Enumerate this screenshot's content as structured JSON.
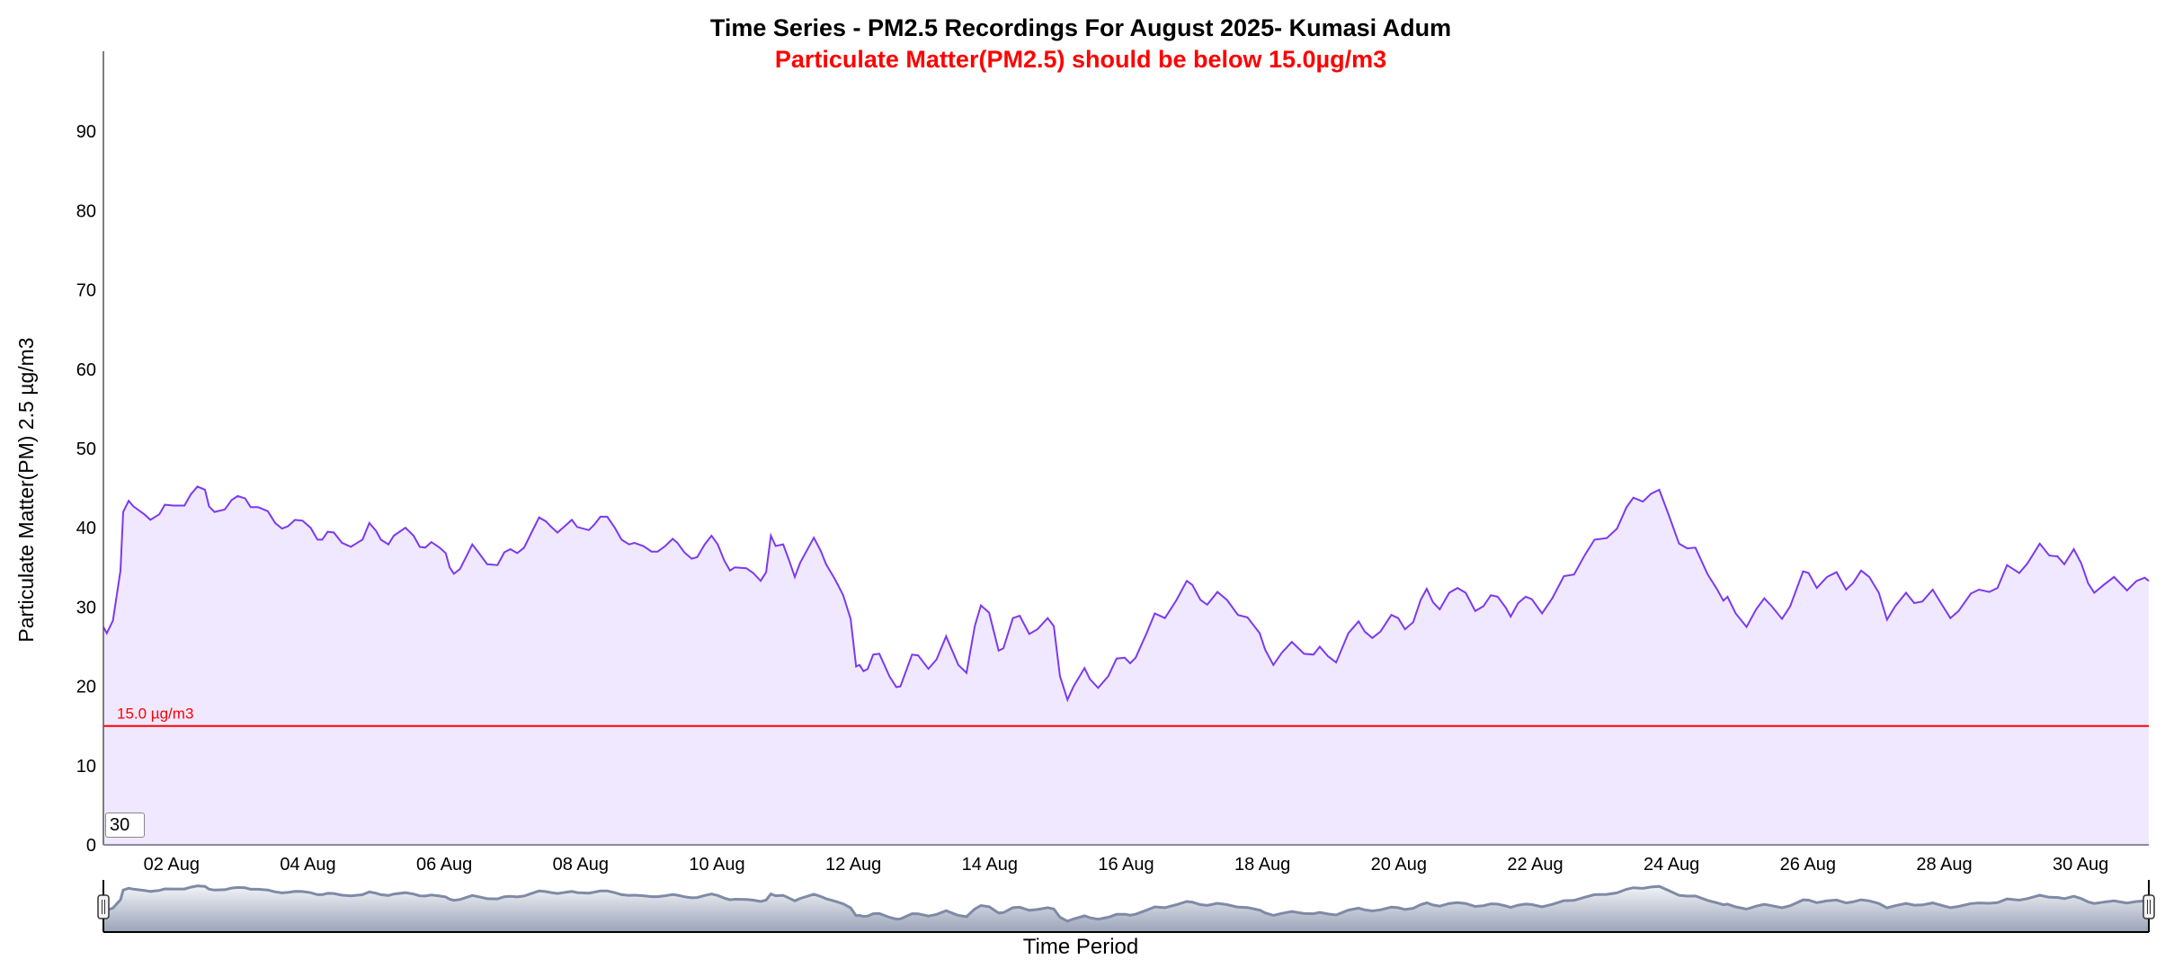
{
  "chart_data": {
    "type": "area",
    "title": "Time Series - PM2.5 Recordings For August 2025- Kumasi Adum",
    "subtitle": "Particulate Matter(PM2.5) should be below 15.0µg/m3",
    "xlabel": "Time Period",
    "ylabel": "Particulate Matter(PM) 2.5 µg/m3",
    "ylim": [
      0,
      100
    ],
    "xlim_day_of_august": [
      1,
      31
    ],
    "y_ticks": [
      0,
      10,
      20,
      30,
      40,
      50,
      60,
      70,
      80,
      90
    ],
    "x_ticks": [
      {
        "day": 2,
        "label": "02 Aug"
      },
      {
        "day": 4,
        "label": "04 Aug"
      },
      {
        "day": 6,
        "label": "06 Aug"
      },
      {
        "day": 8,
        "label": "08 Aug"
      },
      {
        "day": 10,
        "label": "10 Aug"
      },
      {
        "day": 12,
        "label": "12 Aug"
      },
      {
        "day": 14,
        "label": "14 Aug"
      },
      {
        "day": 16,
        "label": "16 Aug"
      },
      {
        "day": 18,
        "label": "18 Aug"
      },
      {
        "day": 20,
        "label": "20 Aug"
      },
      {
        "day": 22,
        "label": "22 Aug"
      },
      {
        "day": 24,
        "label": "24 Aug"
      },
      {
        "day": 26,
        "label": "26 Aug"
      },
      {
        "day": 28,
        "label": "28 Aug"
      },
      {
        "day": 30,
        "label": "30 Aug"
      }
    ],
    "threshold": {
      "value": 15.0,
      "label": "15.0 µg/m3",
      "color": "#ff0000"
    },
    "grid": false,
    "line_color": "#7c3aed",
    "fill_color": "#f0e8ff",
    "series": [
      {
        "x": [
          1.0,
          1.05,
          1.14,
          1.25,
          1.29,
          1.37,
          1.44,
          1.6,
          1.69,
          1.82,
          1.9,
          2.03,
          2.19,
          2.28,
          2.38,
          2.49,
          2.55,
          2.63,
          2.78,
          2.88,
          2.97,
          3.08,
          3.16,
          3.27,
          3.41,
          3.52,
          3.62,
          3.71,
          3.81,
          3.92,
          4.04,
          4.14,
          4.21,
          4.29,
          4.38,
          4.5,
          4.63,
          4.76,
          4.8,
          4.9,
          5.0,
          5.07,
          5.18,
          5.26,
          5.43,
          5.55,
          5.64,
          5.72,
          5.81,
          5.93,
          6.02,
          6.08,
          6.14,
          6.23,
          6.33,
          6.41,
          6.5,
          6.63,
          6.78,
          6.88,
          6.97,
          7.07,
          7.17,
          7.28,
          7.39,
          7.49,
          7.57,
          7.66,
          7.74,
          7.87,
          7.95,
          8.12,
          8.2,
          8.29,
          8.39,
          8.5,
          8.6,
          8.71,
          8.79,
          8.92,
          9.04,
          9.13,
          9.24,
          9.35,
          9.42,
          9.52,
          9.63,
          9.71,
          9.82,
          9.92,
          10.01,
          10.11,
          10.19,
          10.26,
          10.43,
          10.53,
          10.64,
          10.72,
          10.79,
          10.86,
          10.97,
          11.06,
          11.14,
          11.22,
          11.42,
          11.52,
          11.6,
          11.73,
          11.85,
          11.96,
          12.04,
          12.09,
          12.15,
          12.21,
          12.29,
          12.38,
          12.53,
          12.63,
          12.69,
          12.86,
          12.95,
          13.1,
          13.22,
          13.36,
          13.54,
          13.66,
          13.78,
          13.87,
          13.99,
          14.13,
          14.2,
          14.34,
          14.44,
          14.58,
          14.7,
          14.85,
          14.94,
          15.03,
          15.14,
          15.23,
          15.39,
          15.47,
          15.59,
          15.74,
          15.86,
          15.98,
          16.06,
          16.14,
          16.3,
          16.42,
          16.57,
          16.74,
          16.89,
          16.97,
          17.09,
          17.19,
          17.34,
          17.48,
          17.64,
          17.78,
          17.96,
          18.04,
          18.16,
          18.28,
          18.43,
          18.61,
          18.75,
          18.84,
          18.96,
          19.08,
          19.26,
          19.41,
          19.5,
          19.61,
          19.73,
          19.89,
          19.99,
          20.09,
          20.21,
          20.32,
          20.41,
          20.5,
          20.6,
          20.74,
          20.86,
          20.98,
          21.12,
          21.24,
          21.35,
          21.45,
          21.57,
          21.64,
          21.75,
          21.86,
          21.95,
          22.1,
          22.25,
          22.42,
          22.57,
          22.73,
          22.87,
          23.05,
          23.2,
          23.34,
          23.44,
          23.58,
          23.7,
          23.82,
          23.96,
          24.11,
          24.23,
          24.35,
          24.53,
          24.67,
          24.76,
          24.82,
          24.94,
          25.1,
          25.24,
          25.36,
          25.47,
          25.62,
          25.74,
          25.93,
          26.01,
          26.13,
          26.28,
          26.42,
          26.56,
          26.66,
          26.78,
          26.9,
          27.04,
          27.16,
          27.28,
          27.44,
          27.56,
          27.68,
          27.83,
          27.98,
          28.09,
          28.21,
          28.39,
          28.51,
          28.66,
          28.78,
          28.92,
          29.1,
          29.22,
          29.4,
          29.54,
          29.66,
          29.76,
          29.9,
          30.01,
          30.11,
          30.2,
          30.34,
          30.49,
          30.68,
          30.82,
          30.94,
          31.0
        ],
        "y": [
          27.5,
          26.7,
          28.3,
          34.6,
          42.0,
          43.4,
          42.7,
          41.7,
          41.0,
          41.7,
          42.9,
          42.8,
          42.8,
          44.2,
          45.2,
          44.8,
          42.7,
          42.0,
          42.3,
          43.5,
          44.0,
          43.7,
          42.6,
          42.6,
          42.1,
          40.6,
          39.9,
          40.2,
          41.0,
          40.9,
          40.0,
          38.5,
          38.5,
          39.5,
          39.4,
          38.1,
          37.6,
          38.3,
          38.5,
          40.6,
          39.6,
          38.5,
          37.9,
          39.0,
          40.0,
          39.0,
          37.6,
          37.5,
          38.2,
          37.5,
          36.8,
          35.0,
          34.2,
          34.8,
          36.5,
          37.9,
          36.9,
          35.4,
          35.3,
          36.9,
          37.3,
          36.8,
          37.5,
          39.4,
          41.3,
          40.8,
          40.1,
          39.4,
          40.0,
          41.0,
          40.1,
          39.7,
          40.4,
          41.4,
          41.4,
          40.0,
          38.5,
          37.9,
          38.1,
          37.7,
          37.0,
          37.0,
          37.7,
          38.6,
          38.1,
          36.9,
          36.1,
          36.3,
          37.9,
          39.0,
          37.9,
          35.8,
          34.6,
          35.0,
          34.9,
          34.3,
          33.3,
          34.4,
          39.0,
          37.7,
          37.9,
          35.8,
          33.8,
          35.6,
          38.75,
          37.1,
          35.4,
          33.5,
          31.5,
          28.5,
          22.5,
          22.7,
          21.9,
          22.2,
          24.0,
          24.1,
          21.25,
          19.9,
          20.0,
          24.0,
          23.9,
          22.2,
          23.4,
          26.3,
          22.7,
          21.7,
          27.6,
          30.2,
          29.3,
          24.5,
          24.8,
          28.6,
          28.9,
          26.6,
          27.2,
          28.6,
          27.6,
          21.3,
          18.3,
          20.0,
          22.3,
          20.9,
          19.8,
          21.3,
          23.5,
          23.6,
          22.9,
          23.6,
          26.7,
          29.2,
          28.6,
          30.9,
          33.3,
          32.8,
          30.9,
          30.3,
          31.9,
          30.9,
          29.0,
          28.7,
          26.7,
          24.6,
          22.7,
          24.2,
          25.6,
          24.1,
          24.0,
          25.0,
          23.8,
          23.0,
          26.7,
          28.2,
          26.9,
          26.1,
          26.9,
          29.0,
          28.6,
          27.2,
          28.1,
          30.9,
          32.3,
          30.6,
          29.7,
          31.8,
          32.4,
          31.8,
          29.5,
          30.1,
          31.5,
          31.3,
          29.9,
          28.8,
          30.5,
          31.3,
          31.0,
          29.2,
          31.1,
          33.9,
          34.1,
          36.6,
          38.5,
          38.7,
          39.9,
          42.6,
          43.8,
          43.3,
          44.3,
          44.8,
          41.6,
          38.0,
          37.4,
          37.5,
          34.1,
          32.2,
          30.8,
          31.3,
          29.2,
          27.5,
          29.7,
          31.1,
          30.1,
          28.5,
          30.1,
          34.5,
          34.3,
          32.4,
          33.8,
          34.4,
          32.2,
          33.0,
          34.6,
          33.8,
          31.8,
          28.4,
          30.1,
          31.8,
          30.5,
          30.7,
          32.2,
          30.1,
          28.6,
          29.5,
          31.7,
          32.2,
          31.9,
          32.4,
          35.3,
          34.3,
          35.5,
          38.0,
          36.5,
          36.4,
          35.4,
          37.3,
          35.5,
          33.0,
          31.8,
          32.8,
          33.8,
          32.1,
          33.3,
          33.7,
          33.3
        ]
      }
    ]
  },
  "range_input": {
    "value": "30"
  }
}
